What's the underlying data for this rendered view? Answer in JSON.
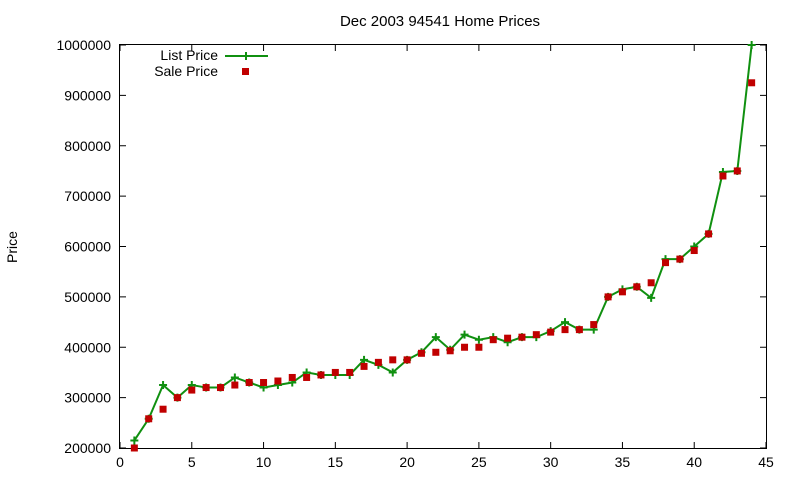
{
  "chart_data": {
    "type": "line",
    "title": "Dec 2003 94541 Home Prices",
    "xlabel": "",
    "ylabel": "Price",
    "xlim": [
      0,
      45
    ],
    "ylim": [
      200000,
      1000000
    ],
    "xticks": [
      "0",
      "5",
      "10",
      "15",
      "20",
      "25",
      "30",
      "35",
      "40",
      "45"
    ],
    "yticks": [
      "200000",
      "300000",
      "400000",
      "500000",
      "600000",
      "700000",
      "800000",
      "900000",
      "1000000"
    ],
    "grid": false,
    "legend_position": "top-left",
    "x": [
      1,
      2,
      3,
      4,
      5,
      6,
      7,
      8,
      9,
      10,
      11,
      12,
      13,
      14,
      15,
      16,
      17,
      18,
      19,
      20,
      21,
      22,
      23,
      24,
      25,
      26,
      27,
      28,
      29,
      30,
      31,
      32,
      33,
      34,
      35,
      36,
      37,
      38,
      39,
      40,
      41,
      42,
      43,
      44
    ],
    "series": [
      {
        "name": "List Price",
        "style": "line+plus",
        "color": "#109010",
        "values": [
          215000,
          258000,
          325000,
          300000,
          325000,
          320000,
          320000,
          340000,
          330000,
          320000,
          325000,
          330000,
          350000,
          345000,
          345000,
          345000,
          375000,
          365000,
          350000,
          375000,
          390000,
          420000,
          395000,
          425000,
          415000,
          420000,
          410000,
          420000,
          420000,
          432000,
          450000,
          435000,
          435000,
          500000,
          515000,
          520000,
          498000,
          575000,
          575000,
          600000,
          625000,
          748000,
          750000,
          1000000
        ]
      },
      {
        "name": "Sale Price",
        "style": "square",
        "color": "#c00000",
        "values": [
          200000,
          258000,
          277000,
          300000,
          315000,
          320000,
          320000,
          325000,
          330000,
          330000,
          333000,
          340000,
          340000,
          345000,
          350000,
          350000,
          362000,
          370000,
          375000,
          375000,
          388000,
          390000,
          393000,
          400000,
          400000,
          415000,
          418000,
          420000,
          425000,
          430000,
          435000,
          435000,
          445000,
          500000,
          510000,
          520000,
          528000,
          568000,
          575000,
          592000,
          625000,
          740000,
          750000,
          925000
        ]
      }
    ]
  }
}
